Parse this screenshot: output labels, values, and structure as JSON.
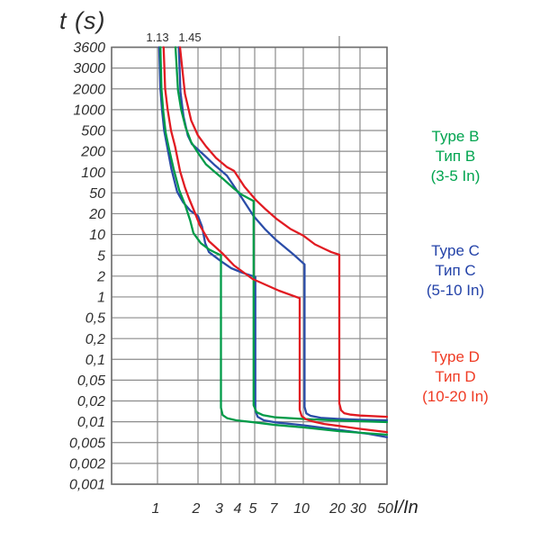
{
  "chart_data": {
    "type": "line",
    "title": "t (s)",
    "xlabel": "I/In",
    "grid": true,
    "x_ticks": [
      {
        "v": 1,
        "label": "1"
      },
      {
        "v": 2,
        "label": "2"
      },
      {
        "v": 3,
        "label": "3"
      },
      {
        "v": 4,
        "label": "4"
      },
      {
        "v": 5,
        "label": "5"
      },
      {
        "v": 7,
        "label": "7"
      },
      {
        "v": 10,
        "label": "10"
      },
      {
        "v": 20,
        "label": "20"
      },
      {
        "v": 30,
        "label": "30"
      },
      {
        "v": 50,
        "label": "50"
      }
    ],
    "y_ticks": [
      {
        "v": 3600,
        "label": "3600"
      },
      {
        "v": 3000,
        "label": "3000"
      },
      {
        "v": 2000,
        "label": "2000"
      },
      {
        "v": 1000,
        "label": "1000"
      },
      {
        "v": 500,
        "label": "500"
      },
      {
        "v": 200,
        "label": "200"
      },
      {
        "v": 100,
        "label": "100"
      },
      {
        "v": 50,
        "label": "50"
      },
      {
        "v": 20,
        "label": "20"
      },
      {
        "v": 10,
        "label": "10"
      },
      {
        "v": 5,
        "label": "5"
      },
      {
        "v": 2,
        "label": "2"
      },
      {
        "v": 1,
        "label": "1"
      },
      {
        "v": 0.5,
        "label": "0,5"
      },
      {
        "v": 0.2,
        "label": "0,2"
      },
      {
        "v": 0.1,
        "label": "0,1"
      },
      {
        "v": 0.05,
        "label": "0,05"
      },
      {
        "v": 0.02,
        "label": "0,02"
      },
      {
        "v": 0.01,
        "label": "0,01"
      },
      {
        "v": 0.005,
        "label": "0,005"
      },
      {
        "v": 0.002,
        "label": "0,002"
      },
      {
        "v": 0.001,
        "label": "0,001"
      }
    ],
    "top_labels": [
      {
        "label": "1.13",
        "x": 1.13
      },
      {
        "label": "1.45",
        "x": 1.45
      }
    ],
    "series": [
      {
        "id": "C-upper",
        "name": "Type C upper limit (1.45 In, trip 10 In)",
        "color": "#2b4da8",
        "points": [
          [
            1.44,
            3600
          ],
          [
            1.48,
            1800
          ],
          [
            1.56,
            800
          ],
          [
            1.68,
            400
          ],
          [
            1.8,
            276
          ],
          [
            2.2,
            180
          ],
          [
            2.7,
            125
          ],
          [
            3.29,
            89
          ],
          [
            4.04,
            45
          ],
          [
            4.92,
            18.5
          ],
          [
            5.95,
            11.8
          ],
          [
            7.07,
            8.3
          ],
          [
            8.85,
            5.1
          ],
          [
            10.25,
            3.35
          ],
          [
            10.25,
            0.0164
          ],
          [
            10.6,
            0.0132
          ],
          [
            11.5,
            0.0122
          ],
          [
            14,
            0.0114
          ],
          [
            20,
            0.011
          ],
          [
            30,
            0.0107
          ],
          [
            50,
            0.0105
          ]
        ]
      },
      {
        "id": "C-lower",
        "name": "Type C lower limit (1.13 In, trip 5 In)",
        "color": "#2b4da8",
        "points": [
          [
            1.03,
            3600
          ],
          [
            1.05,
            2000
          ],
          [
            1.08,
            1000
          ],
          [
            1.12,
            500
          ],
          [
            1.18,
            250
          ],
          [
            1.27,
            110
          ],
          [
            1.4,
            52
          ],
          [
            1.55,
            33
          ],
          [
            1.75,
            23
          ],
          [
            2.0,
            18.5
          ],
          [
            2.15,
            13
          ],
          [
            2.27,
            7.5
          ],
          [
            2.43,
            5.55
          ],
          [
            3.0,
            3.87
          ],
          [
            3.52,
            2.84
          ],
          [
            4.22,
            2.3
          ],
          [
            5.05,
            1.95
          ],
          [
            5.05,
            0.0145
          ],
          [
            5.25,
            0.0118
          ],
          [
            5.8,
            0.0105
          ],
          [
            7,
            0.0098
          ],
          [
            10,
            0.0089
          ],
          [
            20,
            0.0076
          ],
          [
            35,
            0.0067
          ],
          [
            50,
            0.006
          ]
        ]
      },
      {
        "id": "B-upper",
        "name": "Type B upper limit (1.45 In, trip 5 In)",
        "color": "#009b48",
        "points": [
          [
            1.36,
            3600
          ],
          [
            1.42,
            1900
          ],
          [
            1.5,
            1000
          ],
          [
            1.62,
            550
          ],
          [
            1.78,
            300
          ],
          [
            2.0,
            190
          ],
          [
            2.3,
            130
          ],
          [
            2.7,
            100
          ],
          [
            3.1,
            80
          ],
          [
            3.6,
            60
          ],
          [
            4.1,
            47
          ],
          [
            4.6,
            39
          ],
          [
            4.92,
            35
          ],
          [
            4.92,
            0.0174
          ],
          [
            5.15,
            0.0138
          ],
          [
            5.7,
            0.0125
          ],
          [
            7,
            0.0116
          ],
          [
            10,
            0.011
          ],
          [
            20,
            0.0104
          ],
          [
            50,
            0.0099
          ]
        ]
      },
      {
        "id": "B-lower",
        "name": "Type B lower limit (1.13 In, trip 3 In)",
        "color": "#009b48",
        "points": [
          [
            1.05,
            3600
          ],
          [
            1.07,
            2000
          ],
          [
            1.1,
            1000
          ],
          [
            1.15,
            450
          ],
          [
            1.22,
            220
          ],
          [
            1.32,
            110
          ],
          [
            1.45,
            55
          ],
          [
            1.6,
            30
          ],
          [
            1.75,
            16
          ],
          [
            1.85,
            10.5
          ],
          [
            2.1,
            7.5
          ],
          [
            2.43,
            6.1
          ],
          [
            2.75,
            5.4
          ],
          [
            3.0,
            5.0
          ],
          [
            3.0,
            0.016
          ],
          [
            3.08,
            0.0125
          ],
          [
            3.3,
            0.0113
          ],
          [
            3.8,
            0.0105
          ],
          [
            5,
            0.0098
          ],
          [
            7,
            0.009
          ],
          [
            10,
            0.0083
          ],
          [
            20,
            0.0073
          ],
          [
            35,
            0.0068
          ],
          [
            50,
            0.0065
          ]
        ]
      },
      {
        "id": "D-upper",
        "name": "Type D upper limit (1.45 In, trip 20 In)",
        "color": "#e11b22",
        "points": [
          [
            1.47,
            3600
          ],
          [
            1.6,
            1700
          ],
          [
            1.78,
            700
          ],
          [
            2.0,
            400
          ],
          [
            2.3,
            250
          ],
          [
            2.75,
            160
          ],
          [
            3.3,
            118
          ],
          [
            3.68,
            104
          ],
          [
            4.3,
            62
          ],
          [
            5.07,
            37
          ],
          [
            6.0,
            24
          ],
          [
            7.07,
            17
          ],
          [
            8.5,
            12
          ],
          [
            9.97,
            9.7
          ],
          [
            12.5,
            7.2
          ],
          [
            15,
            6.2
          ],
          [
            17.2,
            5.55
          ],
          [
            20,
            5.1
          ],
          [
            20,
            0.0185
          ],
          [
            20.7,
            0.0147
          ],
          [
            22,
            0.0133
          ],
          [
            25,
            0.0127
          ],
          [
            30,
            0.0123
          ],
          [
            50,
            0.0118
          ]
        ]
      },
      {
        "id": "D-lower",
        "name": "Type D lower limit (1.13 In, trip 10 In)",
        "color": "#e11b22",
        "points": [
          [
            1.11,
            3600
          ],
          [
            1.14,
            2000
          ],
          [
            1.19,
            1000
          ],
          [
            1.26,
            500
          ],
          [
            1.35,
            250
          ],
          [
            1.47,
            104
          ],
          [
            1.6,
            60
          ],
          [
            1.71,
            40
          ],
          [
            1.88,
            22
          ],
          [
            2.06,
            13.7
          ],
          [
            2.43,
            8.0
          ],
          [
            3.05,
            5.4
          ],
          [
            3.68,
            3.2
          ],
          [
            4.85,
            1.82
          ],
          [
            7.33,
            1.23
          ],
          [
            9.55,
            0.96
          ],
          [
            9.55,
            0.0149
          ],
          [
            9.8,
            0.0121
          ],
          [
            10.5,
            0.0109
          ],
          [
            12,
            0.0101
          ],
          [
            15,
            0.0093
          ],
          [
            20,
            0.0087
          ],
          [
            30,
            0.0079
          ],
          [
            50,
            0.0071
          ]
        ]
      }
    ],
    "legend": [
      {
        "id": "type-b",
        "color": "#00a44f",
        "lines": [
          "Type B",
          "Тип B",
          "(3-5 In)"
        ]
      },
      {
        "id": "type-c",
        "color": "#2342a8",
        "lines": [
          "Type C",
          "Тип C",
          "(5-10 In)"
        ]
      },
      {
        "id": "type-d",
        "color": "#ef3b24",
        "lines": [
          "Type D",
          "Тип D",
          "(10-20 In)"
        ]
      }
    ]
  }
}
